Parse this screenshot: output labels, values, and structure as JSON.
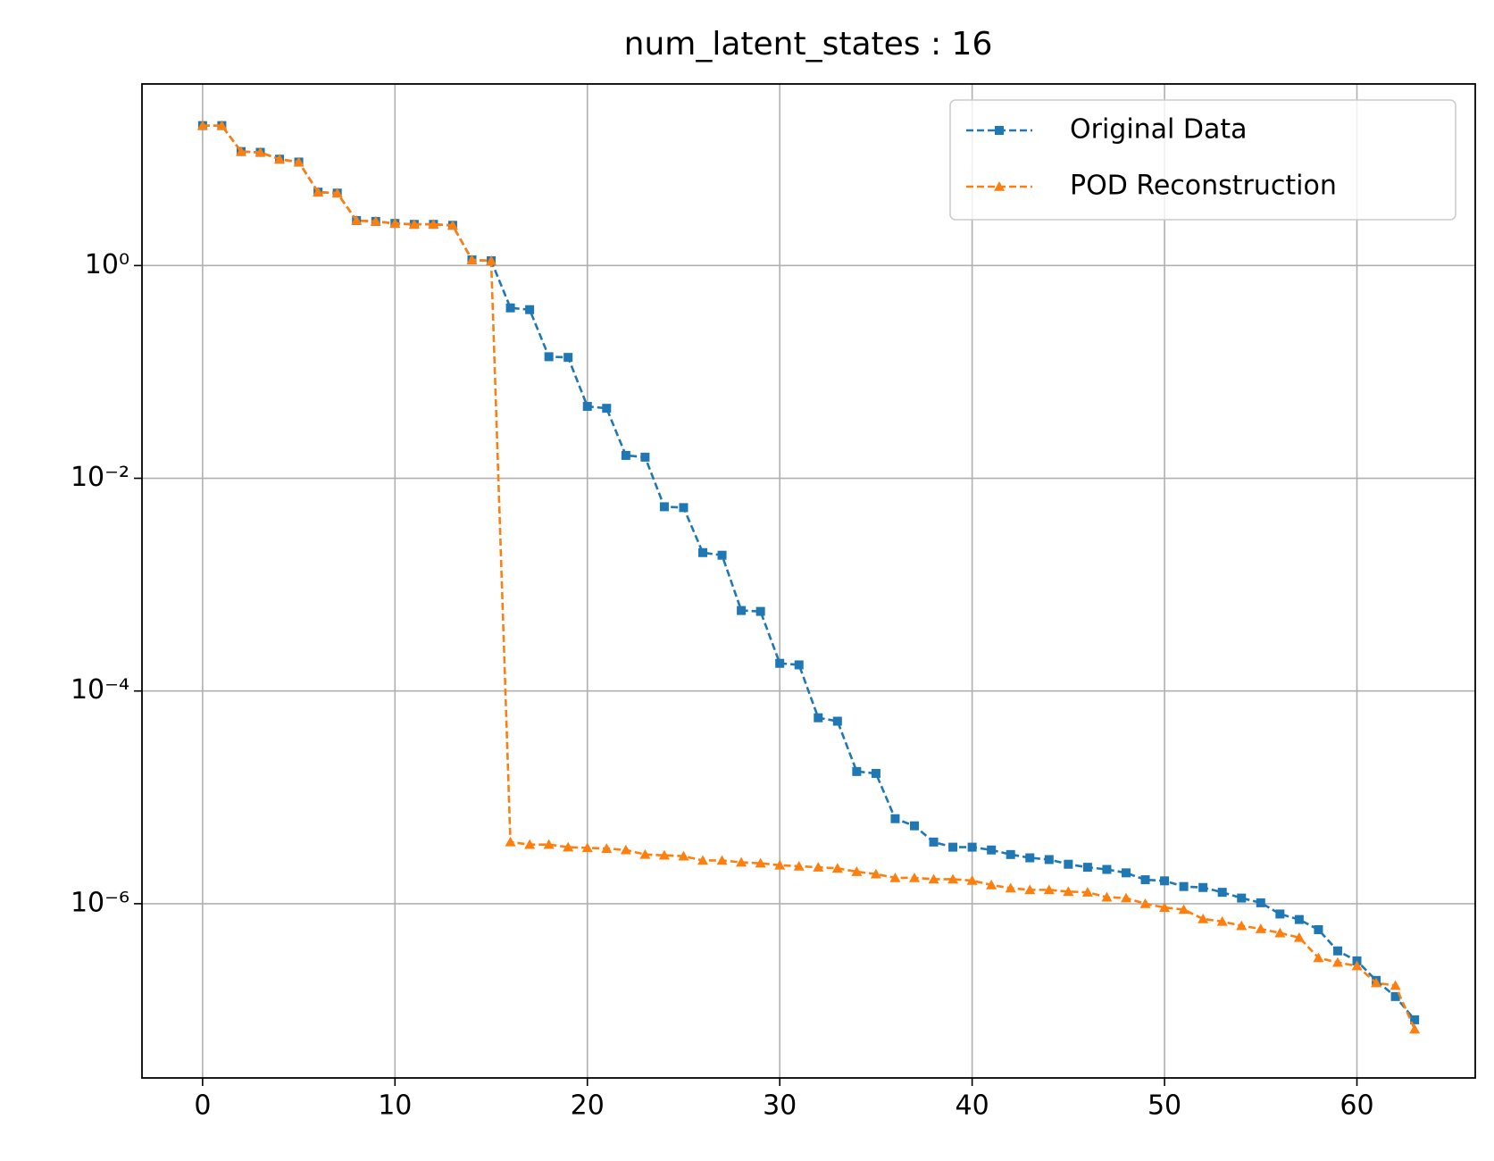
{
  "chart_data": {
    "type": "line",
    "title": "num_latent_states : 16",
    "x": [
      0,
      1,
      2,
      3,
      4,
      5,
      6,
      7,
      8,
      9,
      10,
      11,
      12,
      13,
      14,
      15,
      16,
      17,
      18,
      19,
      20,
      21,
      22,
      23,
      24,
      25,
      26,
      27,
      28,
      29,
      30,
      31,
      32,
      33,
      34,
      35,
      36,
      37,
      38,
      39,
      40,
      41,
      42,
      43,
      44,
      45,
      46,
      47,
      48,
      49,
      50,
      51,
      52,
      53,
      54,
      55,
      56,
      57,
      58,
      59,
      60,
      61,
      62,
      63
    ],
    "series": [
      {
        "name": "Original Data",
        "color": "#1f77b4",
        "marker": "square",
        "values": [
          20.7,
          20.7,
          11.8,
          11.6,
          10.0,
          9.4,
          4.9,
          4.8,
          2.65,
          2.6,
          2.49,
          2.44,
          2.44,
          2.39,
          1.13,
          1.11,
          0.4,
          0.385,
          0.139,
          0.137,
          0.0474,
          0.0455,
          0.0164,
          0.0158,
          0.0054,
          0.0053,
          0.002,
          0.00189,
          0.000571,
          0.00056,
          0.000182,
          0.000176,
          5.6e-05,
          5.2e-05,
          1.75e-05,
          1.68e-05,
          6.3e-06,
          5.4e-06,
          3.8e-06,
          3.4e-06,
          3.4e-06,
          3.2e-06,
          2.9e-06,
          2.7e-06,
          2.6e-06,
          2.35e-06,
          2.2e-06,
          2.1e-06,
          1.95e-06,
          1.68e-06,
          1.64e-06,
          1.45e-06,
          1.42e-06,
          1.28e-06,
          1.13e-06,
          1.02e-06,
          8e-07,
          7.1e-07,
          5.7e-07,
          3.6e-07,
          2.9e-07,
          1.9e-07,
          1.34e-07,
          8.1e-08
        ]
      },
      {
        "name": "POD Reconstruction",
        "color": "#ff7f0e",
        "marker": "triangle",
        "values": [
          20.7,
          20.7,
          11.8,
          11.6,
          10.0,
          9.4,
          4.9,
          4.8,
          2.65,
          2.6,
          2.49,
          2.44,
          2.44,
          2.39,
          1.13,
          1.11,
          3.8e-06,
          3.6e-06,
          3.6e-06,
          3.4e-06,
          3.35e-06,
          3.3e-06,
          3.2e-06,
          2.9e-06,
          2.85e-06,
          2.8e-06,
          2.55e-06,
          2.55e-06,
          2.45e-06,
          2.4e-06,
          2.3e-06,
          2.25e-06,
          2.2e-06,
          2.15e-06,
          2e-06,
          1.9e-06,
          1.75e-06,
          1.75e-06,
          1.7e-06,
          1.7e-06,
          1.65e-06,
          1.5e-06,
          1.4e-06,
          1.35e-06,
          1.35e-06,
          1.3e-06,
          1.28e-06,
          1.15e-06,
          1.13e-06,
          1e-06,
          9.2e-07,
          8.8e-07,
          7.2e-07,
          6.8e-07,
          6.2e-07,
          5.8e-07,
          5.3e-07,
          4.8e-07,
          3.1e-07,
          2.8e-07,
          2.6e-07,
          1.8e-07,
          1.7e-07,
          6.6e-08
        ]
      }
    ],
    "xlim": [
      -3.15,
      66.15
    ],
    "xticks": [
      0,
      10,
      20,
      30,
      40,
      50,
      60
    ],
    "ylim": [
      2.3e-08,
      51
    ],
    "yscale": "log",
    "yticks": [
      {
        "value": 1,
        "label": "10⁰"
      },
      {
        "value": 0.01,
        "label": "10⁻²"
      },
      {
        "value": 0.0001,
        "label": "10⁻⁴"
      },
      {
        "value": 1e-06,
        "label": "10⁻⁶"
      }
    ],
    "grid": true,
    "legend": "upper right"
  }
}
